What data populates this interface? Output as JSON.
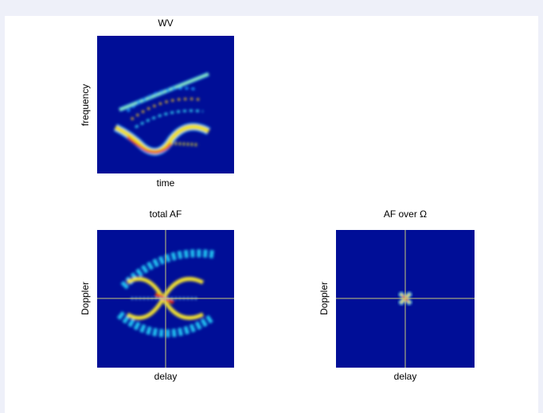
{
  "panels": [
    {
      "title": "WV",
      "xlabel": "time",
      "ylabel": "frequency"
    },
    {
      "title": "total AF",
      "xlabel": "delay",
      "ylabel": "Doppler"
    },
    {
      "title": "AF over Ω",
      "xlabel": "delay",
      "ylabel": "Doppler"
    }
  ]
}
